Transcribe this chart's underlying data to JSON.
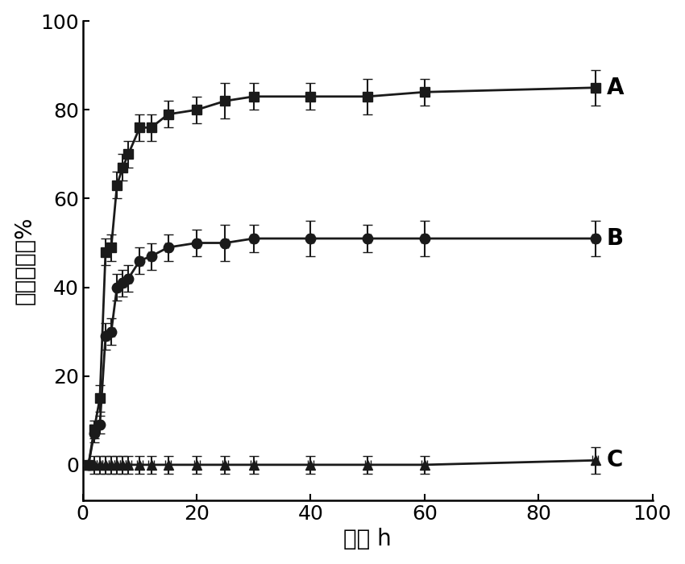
{
  "series_A": {
    "x": [
      1,
      2,
      3,
      4,
      5,
      6,
      7,
      8,
      10,
      12,
      15,
      20,
      25,
      30,
      40,
      50,
      60,
      90
    ],
    "y": [
      0,
      8,
      15,
      48,
      49,
      63,
      67,
      70,
      76,
      76,
      79,
      80,
      82,
      83,
      83,
      83,
      84,
      85
    ],
    "yerr": [
      0.5,
      2,
      3,
      3,
      3,
      3,
      3,
      3,
      3,
      3,
      3,
      3,
      4,
      3,
      3,
      4,
      3,
      4
    ],
    "xerr": 0.5,
    "label": "A",
    "marker": "s",
    "color": "#1a1a1a"
  },
  "series_B": {
    "x": [
      1,
      2,
      3,
      4,
      5,
      6,
      7,
      8,
      10,
      12,
      15,
      20,
      25,
      30,
      40,
      50,
      60,
      90
    ],
    "y": [
      0,
      7,
      9,
      29,
      30,
      40,
      41,
      42,
      46,
      47,
      49,
      50,
      50,
      51,
      51,
      51,
      51,
      51
    ],
    "yerr": [
      0.5,
      2,
      2,
      3,
      3,
      3,
      3,
      3,
      3,
      3,
      3,
      3,
      4,
      3,
      4,
      3,
      4,
      4
    ],
    "xerr": 0.5,
    "label": "B",
    "marker": "o",
    "color": "#1a1a1a"
  },
  "series_C": {
    "x": [
      1,
      2,
      3,
      4,
      5,
      6,
      7,
      8,
      10,
      12,
      15,
      20,
      25,
      30,
      40,
      50,
      60,
      90
    ],
    "y": [
      0,
      0,
      0,
      0,
      0,
      0,
      0,
      0,
      0,
      0,
      0,
      0,
      0,
      0,
      0,
      0,
      0,
      1
    ],
    "yerr": [
      0.5,
      2,
      2,
      2,
      2,
      2,
      2,
      2,
      2,
      2,
      2,
      2,
      2,
      2,
      2,
      2,
      2,
      3
    ],
    "xerr": 0.5,
    "label": "C",
    "marker": "^",
    "color": "#1a1a1a"
  },
  "xlabel": "时间 h",
  "ylabel": "释药百分率%",
  "xlim": [
    0,
    100
  ],
  "ylim": [
    -8,
    100
  ],
  "xticks": [
    0,
    20,
    40,
    60,
    80,
    100
  ],
  "yticks": [
    0,
    20,
    40,
    60,
    80,
    100
  ],
  "label_fontsize": 20,
  "tick_fontsize": 18,
  "annot_fontsize": 20,
  "background_color": "#ffffff",
  "linewidth": 2.0,
  "markersize": 9,
  "capsize": 4,
  "elinewidth": 1.5
}
